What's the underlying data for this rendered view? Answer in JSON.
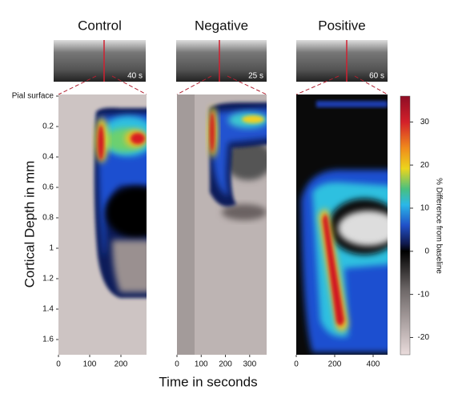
{
  "chart_data": [
    {
      "type": "heatmap",
      "title": "Control",
      "image_label": "40 s",
      "ylabel": "Cortical Depth in mm",
      "xlim": [
        0,
        282
      ],
      "xticks": [
        0,
        100,
        200
      ],
      "ylim": [
        0,
        1.7
      ],
      "yticks": [
        {
          "value": 0,
          "label": "Pial surface"
        },
        0.2,
        0.4,
        0.6,
        0.8,
        1,
        1.2,
        1.4,
        1.6
      ]
    },
    {
      "type": "heatmap",
      "title": "Negative",
      "image_label": "25 s",
      "xlabel": "Time in seconds",
      "xlim": [
        0,
        370
      ],
      "xticks": [
        0,
        100,
        200,
        300
      ],
      "ylim": [
        0,
        1.7
      ]
    },
    {
      "type": "heatmap",
      "title": "Positive",
      "image_label": "60 s",
      "xlim": [
        0,
        475
      ],
      "xticks": [
        0,
        200,
        400
      ],
      "ylim": [
        0,
        1.7
      ],
      "colorbar": {
        "label": "% Difference from baseline",
        "lim": [
          -24,
          36
        ],
        "ticks": [
          -20,
          -10,
          0,
          10,
          20,
          30
        ]
      }
    }
  ]
}
